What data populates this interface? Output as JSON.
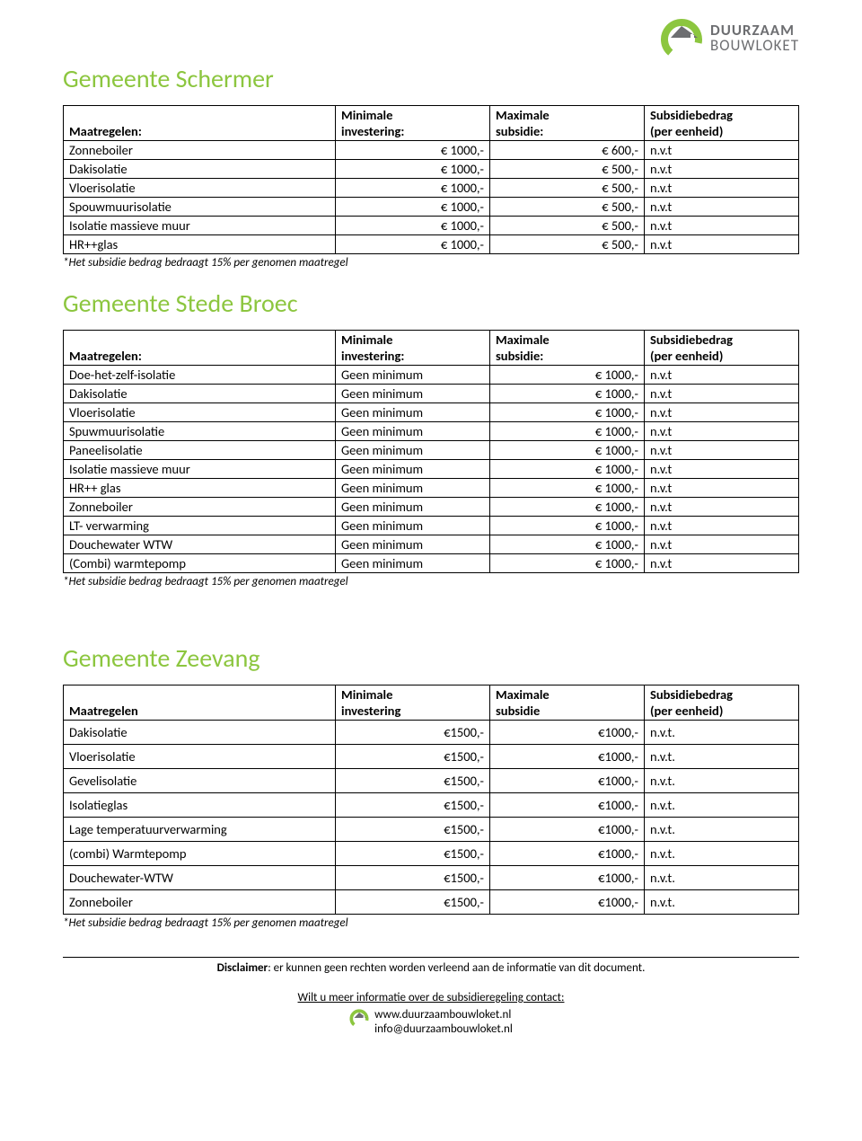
{
  "brand": {
    "line1": "DUURZAAM",
    "line2": "BOUWLOKET",
    "mark_circle": "#8cc63f",
    "mark_roof": "#6d6e71"
  },
  "sections": [
    {
      "title": "Gemeente Schermer",
      "headers": [
        "Maatregelen:",
        "Minimale investering:",
        "Maximale subsidie:",
        "Subsidiebedrag (per eenheid)"
      ],
      "headers_split": [
        [
          "",
          "Maatregelen:"
        ],
        [
          "Minimale",
          "investering:"
        ],
        [
          "Maximale",
          "subsidie:"
        ],
        [
          "Subsidiebedrag",
          "(per eenheid)"
        ]
      ],
      "align": [
        "left",
        "right",
        "right",
        "left"
      ],
      "rows": [
        [
          "Zonneboiler",
          "€ 1000,-",
          "€ 600,-",
          "n.v.t"
        ],
        [
          "Dakisolatie",
          "€ 1000,-",
          "€ 500,-",
          "n.v.t"
        ],
        [
          "Vloerisolatie",
          "€ 1000,-",
          "€ 500,-",
          "n.v.t"
        ],
        [
          "Spouwmuurisolatie",
          "€ 1000,-",
          "€ 500,-",
          "n.v.t"
        ],
        [
          "Isolatie massieve muur",
          "€ 1000,-",
          "€ 500,-",
          "n.v.t"
        ],
        [
          "HR++glas",
          "€ 1000,-",
          "€ 500,-",
          "n.v.t"
        ]
      ],
      "footnote": "*Het subsidie bedrag bedraagt 15% per genomen maatregel"
    },
    {
      "title": "Gemeente Stede Broec",
      "headers_split": [
        [
          "",
          "Maatregelen:"
        ],
        [
          "Minimale",
          "investering:"
        ],
        [
          "Maximale",
          "subsidie:"
        ],
        [
          "Subsidiebedrag",
          "(per eenheid)"
        ]
      ],
      "align": [
        "left",
        "left",
        "right",
        "left"
      ],
      "rows": [
        [
          "Doe-het-zelf-isolatie",
          "Geen minimum",
          "€ 1000,-",
          "n.v.t"
        ],
        [
          "Dakisolatie",
          "Geen minimum",
          "€ 1000,-",
          "n.v.t"
        ],
        [
          "Vloerisolatie",
          "Geen minimum",
          "€ 1000,-",
          "n.v.t"
        ],
        [
          "Spuwmuurisolatie",
          "Geen minimum",
          "€ 1000,-",
          "n.v.t"
        ],
        [
          "Paneelisolatie",
          "Geen minimum",
          "€ 1000,-",
          "n.v.t"
        ],
        [
          "Isolatie massieve muur",
          "Geen minimum",
          "€ 1000,-",
          "n.v.t"
        ],
        [
          "HR++ glas",
          "Geen minimum",
          "€ 1000,-",
          "n.v.t"
        ],
        [
          "Zonneboiler",
          "Geen minimum",
          "€ 1000,-",
          "n.v.t"
        ],
        [
          "LT- verwarming",
          "Geen minimum",
          "€ 1000,-",
          "n.v.t"
        ],
        [
          "Douchewater WTW",
          "Geen minimum",
          "€ 1000,-",
          "n.v.t"
        ],
        [
          "(Combi) warmtepomp",
          "Geen minimum",
          "€ 1000,-",
          "n.v.t"
        ]
      ],
      "footnote": "*Het subsidie bedrag bedraagt 15% per genomen maatregel"
    },
    {
      "title": "Gemeente Zeevang",
      "headers_split": [
        [
          "",
          "Maatregelen"
        ],
        [
          "Minimale",
          "investering"
        ],
        [
          "Maximale",
          "subsidie"
        ],
        [
          "Subsidiebedrag",
          "(per eenheid)"
        ]
      ],
      "align": [
        "left",
        "right",
        "right",
        "left"
      ],
      "rows": [
        [
          "Dakisolatie",
          "€1500,-",
          "€1000,-",
          "n.v.t."
        ],
        [
          "Vloerisolatie",
          "€1500,-",
          "€1000,-",
          "n.v.t."
        ],
        [
          "Gevelisolatie",
          "€1500,-",
          "€1000,-",
          "n.v.t."
        ],
        [
          "Isolatieglas",
          "€1500,-",
          "€1000,-",
          "n.v.t."
        ],
        [
          "Lage temperatuurverwarming",
          "€1500,-",
          "€1000,-",
          "n.v.t."
        ],
        [
          "(combi) Warmtepomp",
          "€1500,-",
          "€1000,-",
          "n.v.t."
        ],
        [
          "Douchewater-WTW",
          "€1500,-",
          "€1000,-",
          "n.v.t."
        ],
        [
          "Zonneboiler",
          "€1500,-",
          "€1000,-",
          "n.v.t."
        ]
      ],
      "footnote": "*Het subsidie bedrag bedraagt 15% per genomen maatregel",
      "row_padding": "4px 6px"
    }
  ],
  "footer": {
    "disclaimer_label": "Disclaimer",
    "disclaimer_text": ": er kunnen geen rechten worden verleend aan de informatie van dit document.",
    "contact": "Wilt u meer informatie over de subsidieregeling contact:",
    "url1": "www.duurzaambouwloket.nl",
    "url2": "info@duurzaambouwloket.nl"
  },
  "colors": {
    "heading": "#8cc63f",
    "text": "#000000",
    "brand_gray": "#6d6e71",
    "border": "#000000"
  }
}
